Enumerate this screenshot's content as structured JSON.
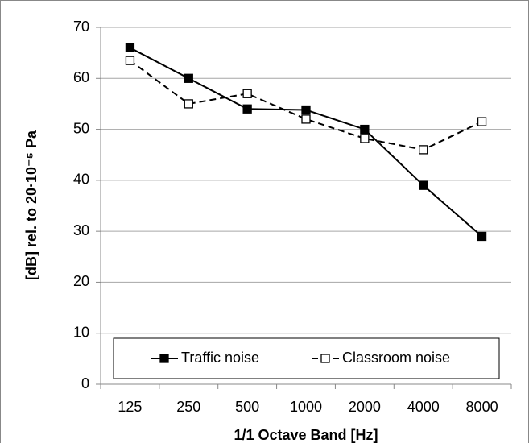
{
  "chart_data": {
    "type": "line",
    "x_label": "1/1 Octave Band [Hz]",
    "y_label": "[dB] rel. to 20·10⁻⁵ Pa",
    "categories": [
      "125",
      "250",
      "500",
      "1000",
      "2000",
      "4000",
      "8000"
    ],
    "series": [
      {
        "name": "Traffic noise",
        "color": "#000000",
        "linestyle": "solid",
        "marker": "filled-square",
        "values": [
          66,
          60,
          54,
          53.8,
          50,
          39,
          29
        ]
      },
      {
        "name": "Classroom noise",
        "color": "#000000",
        "linestyle": "dashed",
        "marker": "open-square",
        "values": [
          63.5,
          55,
          57,
          52,
          48.2,
          46,
          51.5
        ]
      }
    ],
    "ylim": [
      0,
      70
    ],
    "yticks": [
      0,
      10,
      20,
      30,
      40,
      50,
      60,
      70
    ],
    "grid": true,
    "legend": "bottom"
  }
}
